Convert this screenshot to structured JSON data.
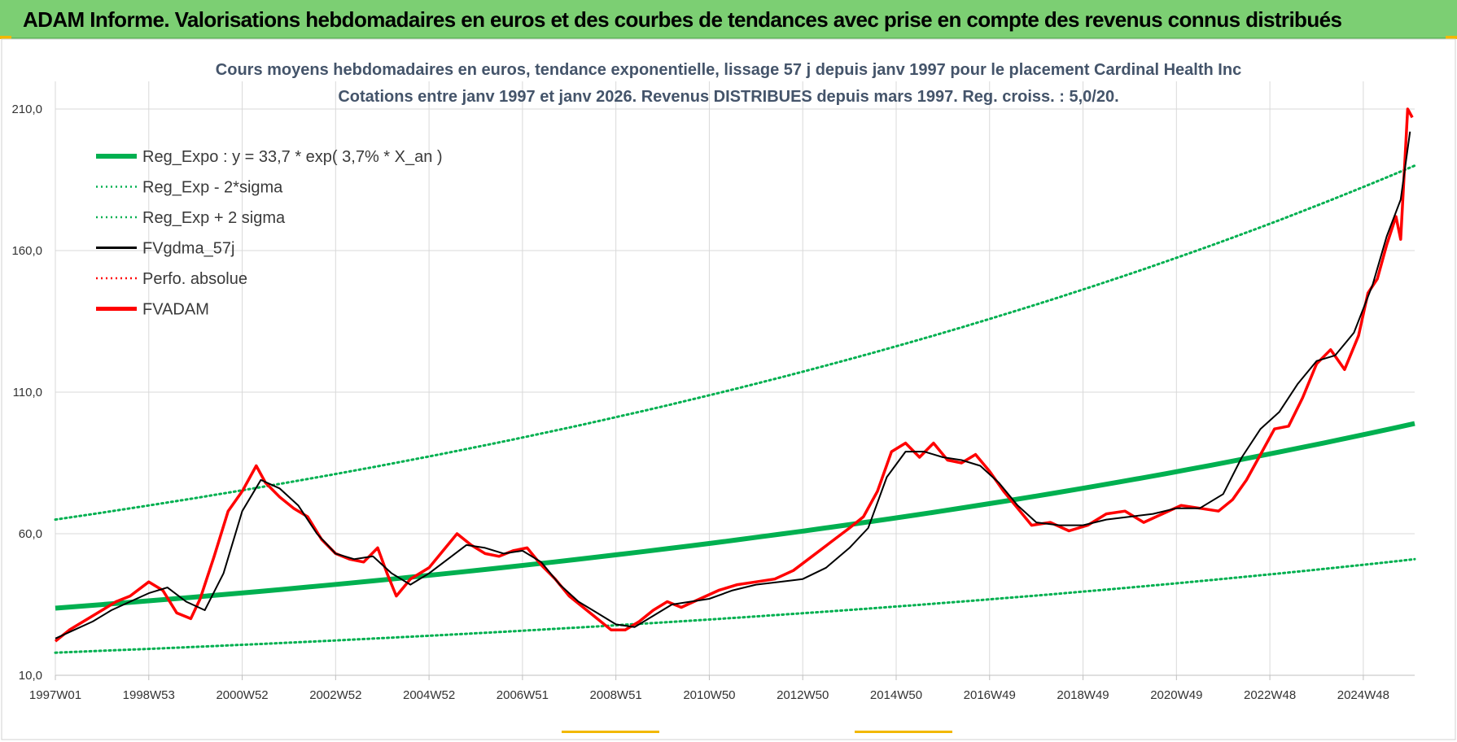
{
  "header": {
    "title": "ADAM Informe. Valorisations hebdomadaires en euros et des courbes de tendances avec prise en compte des revenus connus distribués"
  },
  "colors": {
    "banner": "#7ccf73",
    "reg_expo": "#00b050",
    "reg_bands": "#00b050",
    "fvgdma": "#000000",
    "perfo": "#ff0000",
    "fvadam": "#ff0000",
    "grid": "#d9d9d9"
  },
  "chart_data": {
    "type": "line",
    "title": "Cours moyens hebdomadaires en euros, tendance exponentielle, lissage 57 j depuis janv 1997 pour le placement Cardinal Health Inc",
    "subtitle": "Cotations entre janv 1997 et janv 2026. Revenus DISTRIBUES depuis mars 1997. Reg. croiss. : 5,0/20.",
    "xlabel": "",
    "ylabel": "",
    "ylim": [
      10,
      210
    ],
    "yticks": [
      "10,0",
      "60,0",
      "110,0",
      "160,0",
      "210,0"
    ],
    "yticks_values": [
      10,
      60,
      110,
      160,
      210
    ],
    "xlim": [
      1997.0,
      2026.1
    ],
    "xticks": [
      "1997W01",
      "1998W53",
      "2000W52",
      "2002W52",
      "2004W52",
      "2006W51",
      "2008W51",
      "2010W50",
      "2012W50",
      "2014W50",
      "2016W49",
      "2018W49",
      "2020W49",
      "2022W48",
      "2024W48"
    ],
    "xticks_values": [
      1997.0,
      1999.0,
      2001.0,
      2003.0,
      2005.0,
      2007.0,
      2009.0,
      2011.0,
      2013.0,
      2015.0,
      2017.0,
      2019.0,
      2021.0,
      2023.0,
      2025.0
    ],
    "grid": true,
    "legend_position": "top-left",
    "legend": [
      {
        "name": "Reg_Expo : y = 33,7 * exp( 3,7% *  X_an )",
        "style": "solid-thick",
        "color": "#00b050"
      },
      {
        "name": "Reg_Exp - 2*sigma",
        "style": "dotted",
        "color": "#00b050"
      },
      {
        "name": "Reg_Exp + 2 sigma",
        "style": "dotted",
        "color": "#00b050"
      },
      {
        "name": "FVgdma_57j",
        "style": "solid",
        "color": "#000000"
      },
      {
        "name": "Perfo. absolue",
        "style": "dotted",
        "color": "#ff0000"
      },
      {
        "name": "FVADAM",
        "style": "solid-thick",
        "color": "#ff0000"
      }
    ],
    "regression": {
      "a": 33.7,
      "b": 0.037,
      "x0": 1997.0,
      "lower": {
        "x": [
          1997.0,
          2026.1
        ],
        "y": [
          18,
          51
        ]
      },
      "upper": {
        "x": [
          1997.0,
          2026.1
        ],
        "y": [
          65,
          190
        ]
      }
    },
    "series": [
      {
        "name": "FVADAM",
        "x": [
          1997.0,
          1997.3,
          1997.6,
          1998.0,
          1998.3,
          1998.6,
          1999.0,
          1999.3,
          1999.6,
          1999.9,
          2000.1,
          2000.4,
          2000.7,
          2001.0,
          2001.3,
          2001.5,
          2001.8,
          2002.1,
          2002.4,
          2002.7,
          2003.0,
          2003.3,
          2003.6,
          2003.9,
          2004.1,
          2004.3,
          2004.6,
          2005.0,
          2005.3,
          2005.6,
          2005.9,
          2006.2,
          2006.5,
          2006.8,
          2007.1,
          2007.4,
          2007.7,
          2008.0,
          2008.3,
          2008.6,
          2008.9,
          2009.2,
          2009.5,
          2009.8,
          2010.1,
          2010.4,
          2010.8,
          2011.2,
          2011.6,
          2012.0,
          2012.4,
          2012.8,
          2013.2,
          2013.6,
          2014.0,
          2014.3,
          2014.6,
          2014.9,
          2015.2,
          2015.5,
          2015.8,
          2016.1,
          2016.4,
          2016.7,
          2017.0,
          2017.3,
          2017.6,
          2017.9,
          2018.3,
          2018.7,
          2019.1,
          2019.5,
          2019.9,
          2020.3,
          2020.7,
          2021.1,
          2021.5,
          2021.9,
          2022.2,
          2022.5,
          2022.8,
          2023.1,
          2023.4,
          2023.7,
          2024.0,
          2024.3,
          2024.6,
          2024.9,
          2025.1,
          2025.3,
          2025.5,
          2025.7,
          2025.8,
          2025.95,
          2026.05
        ],
        "y": [
          22,
          26,
          29,
          33,
          36,
          38,
          43,
          40,
          32,
          30,
          37,
          52,
          68,
          75,
          84,
          78,
          73,
          69,
          66,
          58,
          53,
          51,
          50,
          55,
          46,
          38,
          44,
          48,
          54,
          60,
          56,
          53,
          52,
          54,
          55,
          49,
          44,
          38,
          34,
          30,
          26,
          26,
          29,
          33,
          36,
          34,
          37,
          40,
          42,
          43,
          44,
          47,
          52,
          57,
          62,
          66,
          75,
          89,
          92,
          87,
          92,
          86,
          85,
          88,
          82,
          75,
          69,
          63,
          64,
          61,
          63,
          67,
          68,
          64,
          67,
          70,
          69,
          68,
          72,
          79,
          88,
          97,
          98,
          108,
          120,
          125,
          118,
          130,
          145,
          150,
          162,
          172,
          164,
          210,
          207
        ]
      },
      {
        "name": "FVgdma_57j",
        "x": [
          1997.0,
          1997.4,
          1997.8,
          1998.2,
          1998.6,
          1999.0,
          1999.4,
          1999.8,
          2000.2,
          2000.6,
          2001.0,
          2001.4,
          2001.8,
          2002.2,
          2002.6,
          2003.0,
          2003.4,
          2003.8,
          2004.2,
          2004.6,
          2005.0,
          2005.4,
          2005.8,
          2006.2,
          2006.6,
          2007.0,
          2007.4,
          2007.8,
          2008.2,
          2008.6,
          2009.0,
          2009.4,
          2009.8,
          2010.2,
          2010.6,
          2011.0,
          2011.5,
          2012.0,
          2012.5,
          2013.0,
          2013.5,
          2014.0,
          2014.4,
          2014.8,
          2015.2,
          2015.6,
          2016.0,
          2016.4,
          2016.8,
          2017.2,
          2017.6,
          2018.0,
          2018.5,
          2019.0,
          2019.5,
          2020.0,
          2020.5,
          2021.0,
          2021.5,
          2022.0,
          2022.4,
          2022.8,
          2023.2,
          2023.6,
          2024.0,
          2024.4,
          2024.8,
          2025.2,
          2025.5,
          2025.8,
          2026.0
        ],
        "y": [
          23,
          26,
          29,
          33,
          36,
          39,
          41,
          36,
          33,
          46,
          68,
          79,
          76,
          70,
          60,
          53,
          51,
          52,
          46,
          42,
          46,
          51,
          56,
          55,
          53,
          54,
          50,
          42,
          36,
          32,
          28,
          27,
          31,
          35,
          36,
          37,
          40,
          42,
          43,
          44,
          48,
          55,
          62,
          80,
          89,
          89,
          87,
          86,
          84,
          78,
          70,
          64,
          63,
          63,
          65,
          66,
          67,
          69,
          69,
          74,
          87,
          97,
          103,
          113,
          121,
          123,
          131,
          148,
          165,
          178,
          202
        ]
      }
    ]
  }
}
